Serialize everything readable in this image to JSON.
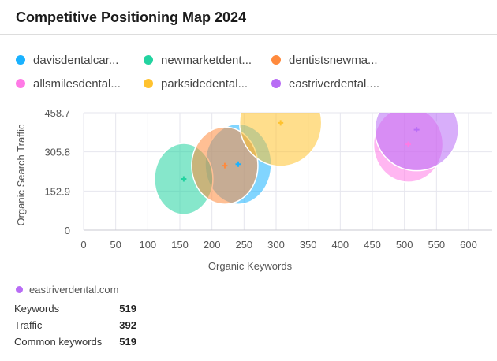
{
  "header": {
    "title": "Competitive Positioning Map",
    "year": "2024"
  },
  "chart_data": {
    "type": "scatter",
    "xlabel": "Organic Keywords",
    "ylabel": "Organic Search Traffic",
    "xlim": [
      0,
      620
    ],
    "ylim": [
      0,
      458.7
    ],
    "xticks": [
      "0",
      "50",
      "100",
      "150",
      "200",
      "250",
      "300",
      "350",
      "400",
      "450",
      "500",
      "550",
      "600"
    ],
    "yticks": [
      "0",
      "152.9",
      "305.8",
      "458.7"
    ],
    "grid": true,
    "legend_position": "top",
    "series": [
      {
        "name": "davisdentalcar...",
        "color": "#1ab2ff",
        "x": 241,
        "y": 258
      },
      {
        "name": "newmarketdent...",
        "color": "#22d3a0",
        "x": 156,
        "y": 200
      },
      {
        "name": "dentistsnewma...",
        "color": "#ff8a3d",
        "x": 220,
        "y": 252
      },
      {
        "name": "allsmilesdental...",
        "color": "#ff7ae6",
        "x": 506,
        "y": 335
      },
      {
        "name": "parksidedental...",
        "color": "#ffc22e",
        "x": 307,
        "y": 419
      },
      {
        "name": "eastriverdental....",
        "color": "#b86cf5",
        "x": 519,
        "y": 392
      }
    ]
  },
  "detail": {
    "domain": "eastriverdental.com",
    "color": "#b86cf5",
    "rows": [
      {
        "label": "Keywords",
        "value": "519"
      },
      {
        "label": "Traffic",
        "value": "392"
      },
      {
        "label": "Common keywords",
        "value": "519"
      }
    ]
  }
}
